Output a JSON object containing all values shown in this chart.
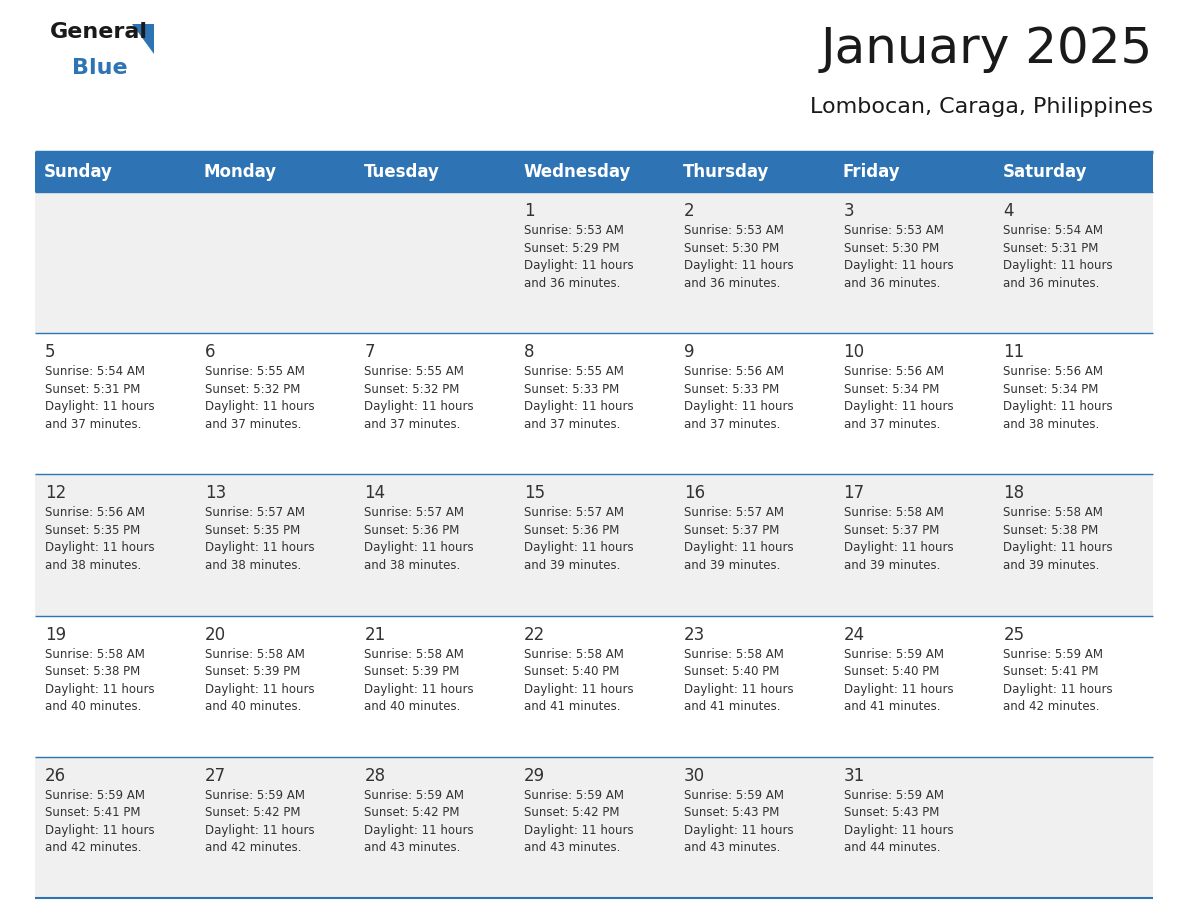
{
  "title": "January 2025",
  "subtitle": "Lombocan, Caraga, Philippines",
  "days_of_week": [
    "Sunday",
    "Monday",
    "Tuesday",
    "Wednesday",
    "Thursday",
    "Friday",
    "Saturday"
  ],
  "header_bg": "#2E74B5",
  "header_text": "#FFFFFF",
  "row_bg_light": "#F0F0F0",
  "row_bg_white": "#FFFFFF",
  "separator_color": "#2E74B5",
  "text_color": "#333333",
  "title_color": "#1a1a1a",
  "logo_blue": "#2E74B5",
  "logo_dark": "#1a1a1a",
  "calendar": [
    [
      null,
      null,
      null,
      {
        "day": 1,
        "sunrise": "5:53 AM",
        "sunset": "5:29 PM",
        "daylight": "11 hours and 36 minutes"
      },
      {
        "day": 2,
        "sunrise": "5:53 AM",
        "sunset": "5:30 PM",
        "daylight": "11 hours and 36 minutes"
      },
      {
        "day": 3,
        "sunrise": "5:53 AM",
        "sunset": "5:30 PM",
        "daylight": "11 hours and 36 minutes"
      },
      {
        "day": 4,
        "sunrise": "5:54 AM",
        "sunset": "5:31 PM",
        "daylight": "11 hours and 36 minutes"
      }
    ],
    [
      {
        "day": 5,
        "sunrise": "5:54 AM",
        "sunset": "5:31 PM",
        "daylight": "11 hours and 37 minutes"
      },
      {
        "day": 6,
        "sunrise": "5:55 AM",
        "sunset": "5:32 PM",
        "daylight": "11 hours and 37 minutes"
      },
      {
        "day": 7,
        "sunrise": "5:55 AM",
        "sunset": "5:32 PM",
        "daylight": "11 hours and 37 minutes"
      },
      {
        "day": 8,
        "sunrise": "5:55 AM",
        "sunset": "5:33 PM",
        "daylight": "11 hours and 37 minutes"
      },
      {
        "day": 9,
        "sunrise": "5:56 AM",
        "sunset": "5:33 PM",
        "daylight": "11 hours and 37 minutes"
      },
      {
        "day": 10,
        "sunrise": "5:56 AM",
        "sunset": "5:34 PM",
        "daylight": "11 hours and 37 minutes"
      },
      {
        "day": 11,
        "sunrise": "5:56 AM",
        "sunset": "5:34 PM",
        "daylight": "11 hours and 38 minutes"
      }
    ],
    [
      {
        "day": 12,
        "sunrise": "5:56 AM",
        "sunset": "5:35 PM",
        "daylight": "11 hours and 38 minutes"
      },
      {
        "day": 13,
        "sunrise": "5:57 AM",
        "sunset": "5:35 PM",
        "daylight": "11 hours and 38 minutes"
      },
      {
        "day": 14,
        "sunrise": "5:57 AM",
        "sunset": "5:36 PM",
        "daylight": "11 hours and 38 minutes"
      },
      {
        "day": 15,
        "sunrise": "5:57 AM",
        "sunset": "5:36 PM",
        "daylight": "11 hours and 39 minutes"
      },
      {
        "day": 16,
        "sunrise": "5:57 AM",
        "sunset": "5:37 PM",
        "daylight": "11 hours and 39 minutes"
      },
      {
        "day": 17,
        "sunrise": "5:58 AM",
        "sunset": "5:37 PM",
        "daylight": "11 hours and 39 minutes"
      },
      {
        "day": 18,
        "sunrise": "5:58 AM",
        "sunset": "5:38 PM",
        "daylight": "11 hours and 39 minutes"
      }
    ],
    [
      {
        "day": 19,
        "sunrise": "5:58 AM",
        "sunset": "5:38 PM",
        "daylight": "11 hours and 40 minutes"
      },
      {
        "day": 20,
        "sunrise": "5:58 AM",
        "sunset": "5:39 PM",
        "daylight": "11 hours and 40 minutes"
      },
      {
        "day": 21,
        "sunrise": "5:58 AM",
        "sunset": "5:39 PM",
        "daylight": "11 hours and 40 minutes"
      },
      {
        "day": 22,
        "sunrise": "5:58 AM",
        "sunset": "5:40 PM",
        "daylight": "11 hours and 41 minutes"
      },
      {
        "day": 23,
        "sunrise": "5:58 AM",
        "sunset": "5:40 PM",
        "daylight": "11 hours and 41 minutes"
      },
      {
        "day": 24,
        "sunrise": "5:59 AM",
        "sunset": "5:40 PM",
        "daylight": "11 hours and 41 minutes"
      },
      {
        "day": 25,
        "sunrise": "5:59 AM",
        "sunset": "5:41 PM",
        "daylight": "11 hours and 42 minutes"
      }
    ],
    [
      {
        "day": 26,
        "sunrise": "5:59 AM",
        "sunset": "5:41 PM",
        "daylight": "11 hours and 42 minutes"
      },
      {
        "day": 27,
        "sunrise": "5:59 AM",
        "sunset": "5:42 PM",
        "daylight": "11 hours and 42 minutes"
      },
      {
        "day": 28,
        "sunrise": "5:59 AM",
        "sunset": "5:42 PM",
        "daylight": "11 hours and 43 minutes"
      },
      {
        "day": 29,
        "sunrise": "5:59 AM",
        "sunset": "5:42 PM",
        "daylight": "11 hours and 43 minutes"
      },
      {
        "day": 30,
        "sunrise": "5:59 AM",
        "sunset": "5:43 PM",
        "daylight": "11 hours and 43 minutes"
      },
      {
        "day": 31,
        "sunrise": "5:59 AM",
        "sunset": "5:43 PM",
        "daylight": "11 hours and 44 minutes"
      },
      null
    ]
  ]
}
